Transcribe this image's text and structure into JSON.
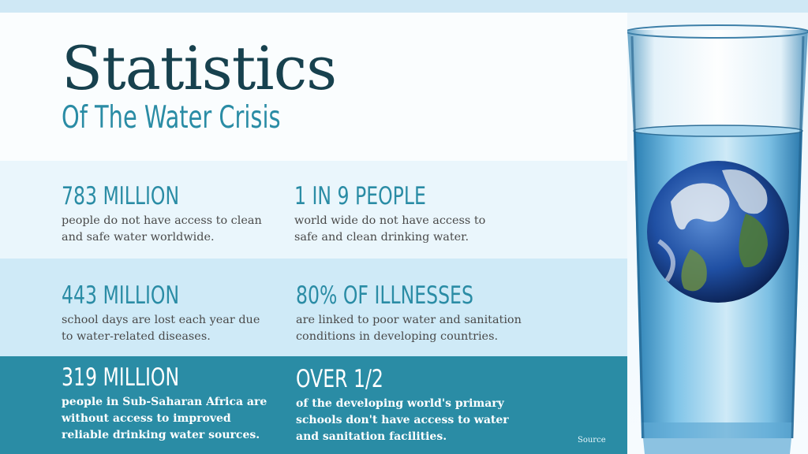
{
  "title": "Statistics",
  "subtitle": "Of The Water Crisis",
  "stats": [
    {
      "number": "783 MILLION",
      "lines": [
        "people do not have access to clean",
        "and safe water worldwide."
      ]
    },
    {
      "number": "1 IN 9 PEOPLE",
      "lines": [
        "world wide do not have access to",
        "safe and clean drinking water."
      ]
    },
    {
      "number": "443 MILLION",
      "lines": [
        "school days are lost each year due",
        "to water-related diseases."
      ]
    },
    {
      "number": "80% OF ILLNESSES",
      "lines": [
        "are linked to poor water and sanitation",
        "conditions in developing countries."
      ]
    },
    {
      "number": "319 MILLION",
      "lines": [
        "people in Sub-Saharan Africa are",
        "without access to improved",
        "reliable drinking water sources."
      ]
    },
    {
      "number": "OVER 1/2",
      "lines": [
        "of the developing world's primary",
        "schools don't have access to water",
        "and sanitation facilities."
      ]
    }
  ],
  "source_link": "Source",
  "colors": {
    "title": "#17414e",
    "accent": "#2a8ca5",
    "row_light": "#eaf6fc",
    "row_mid": "#cfeaf7",
    "row_dark": "#2a8ca5"
  },
  "image": {
    "icon": "water-glass-earth-image"
  }
}
